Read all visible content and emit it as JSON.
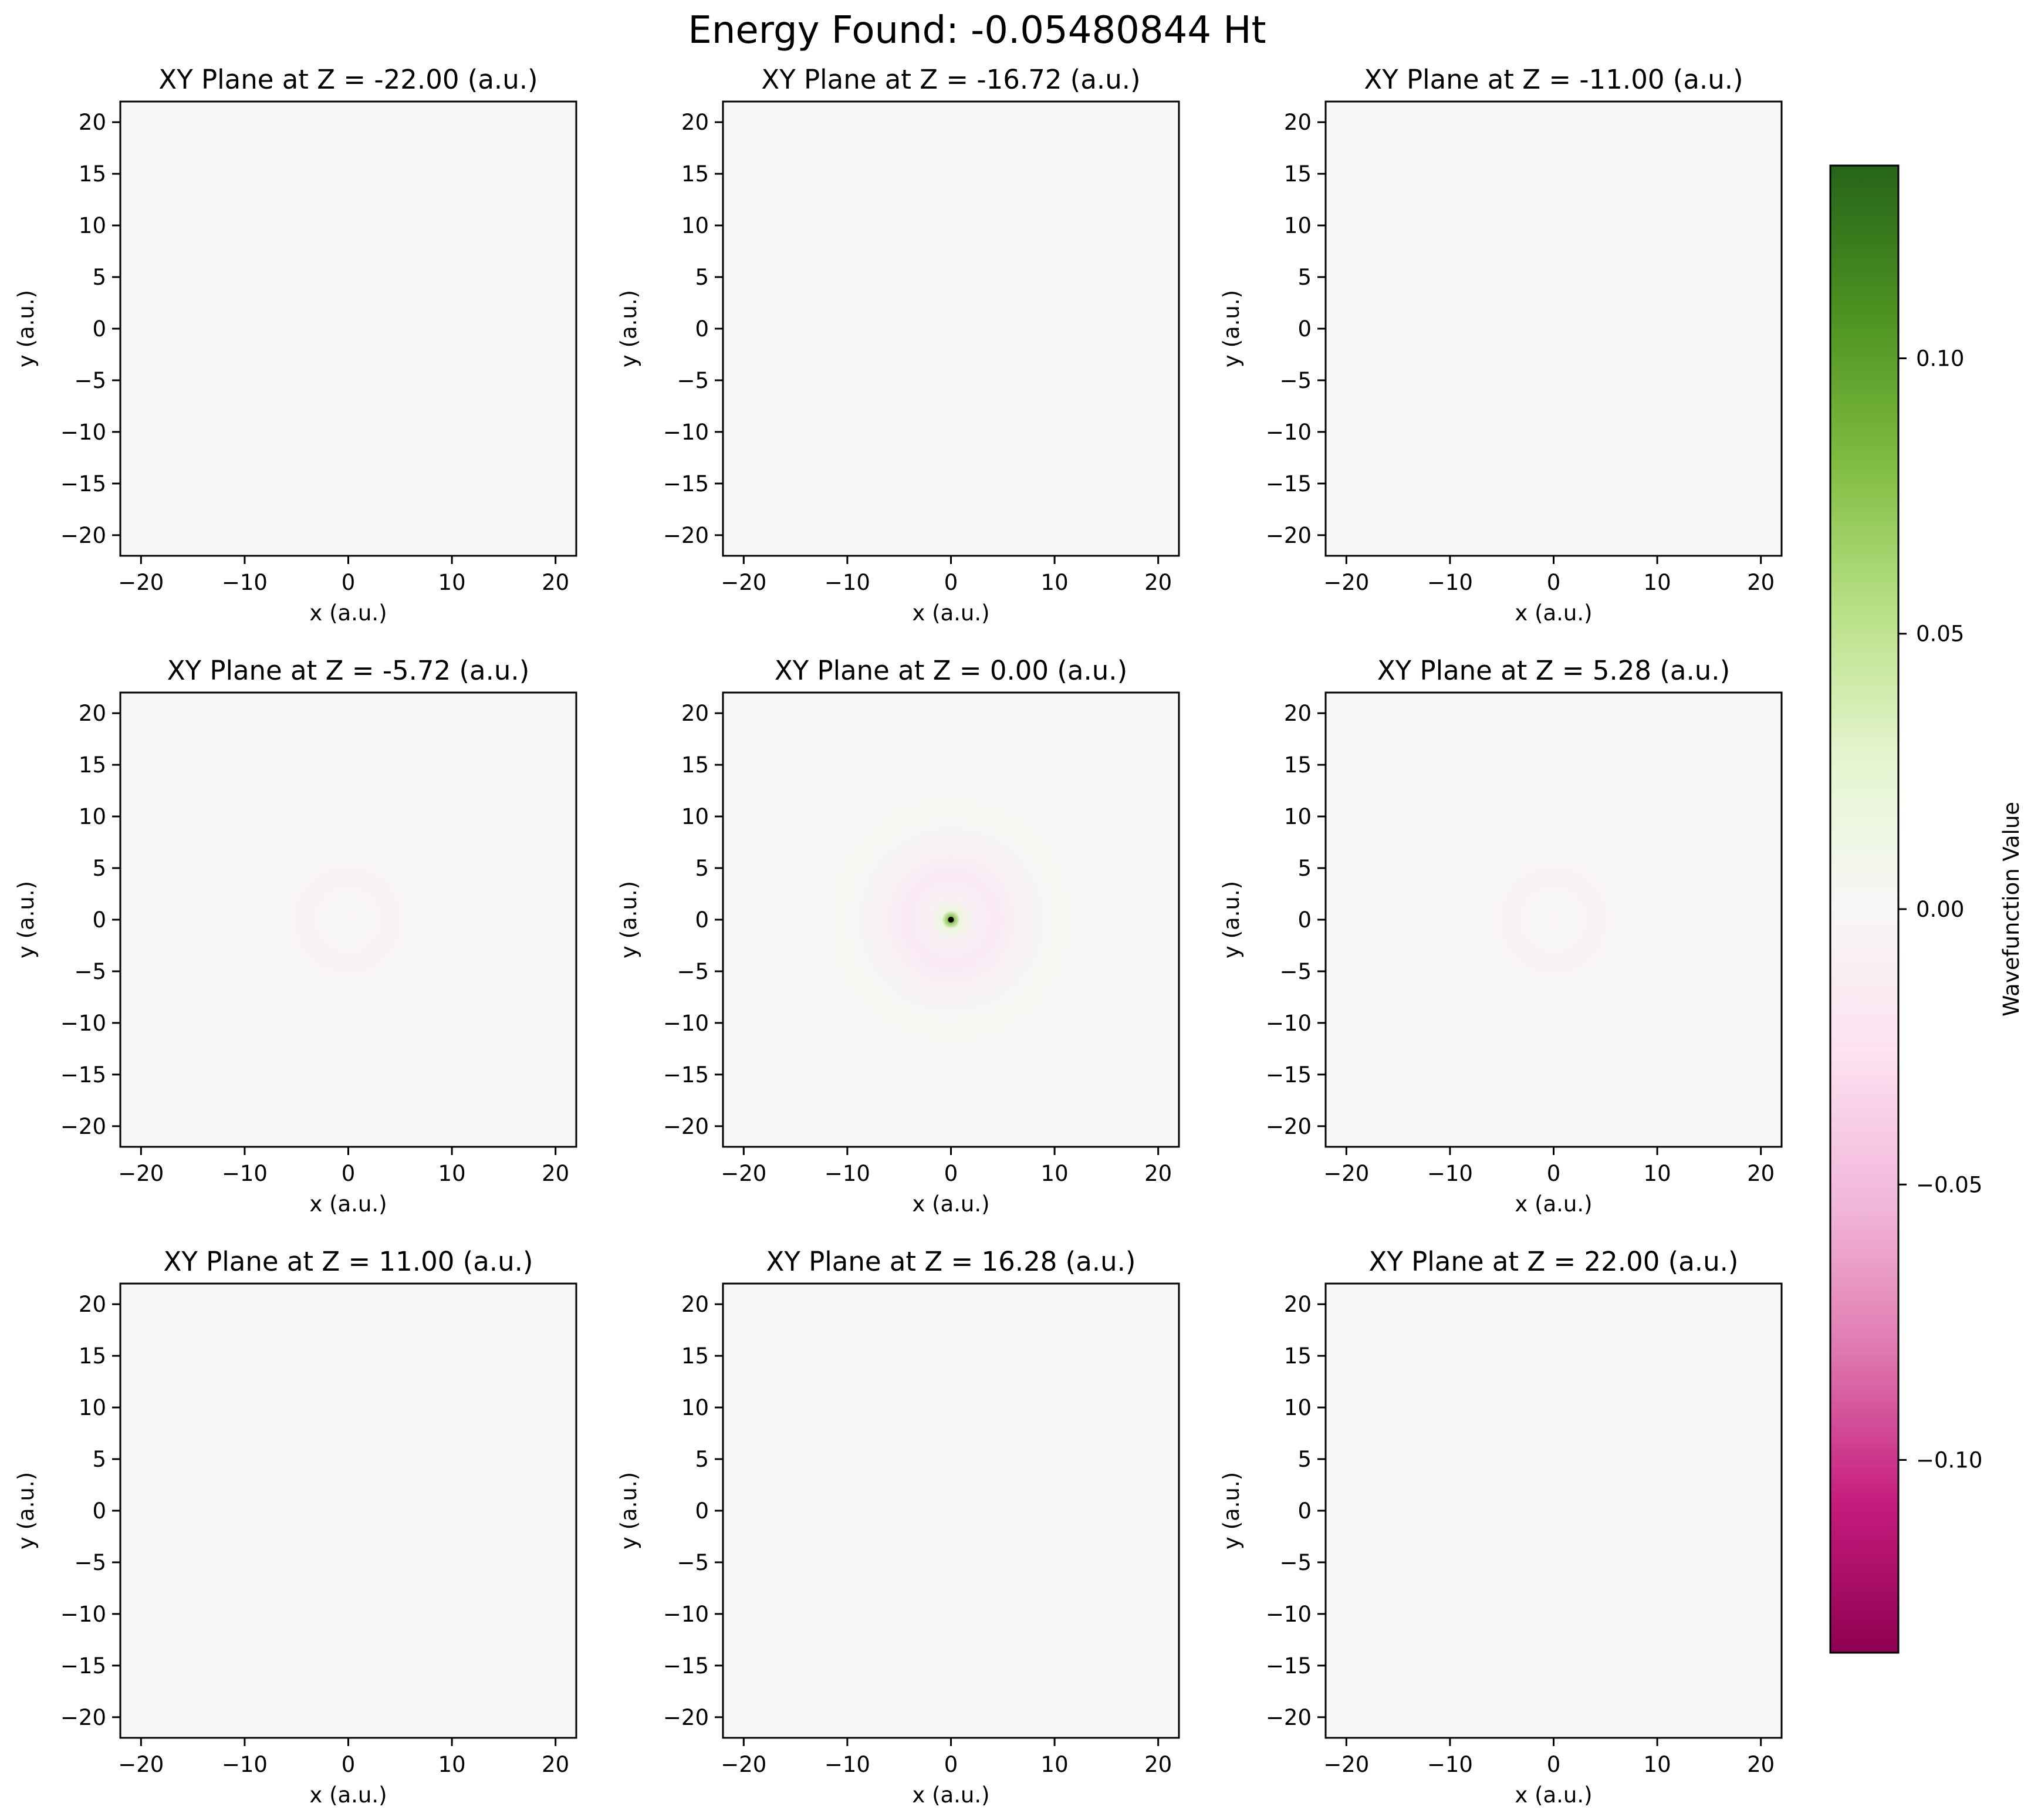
{
  "figure": {
    "suptitle": "Energy Found: -0.05480844 Ht"
  },
  "colors": {
    "background_near_zero": "#f5f5f5",
    "negative_end": "#8e0152",
    "positive_end": "#276419",
    "colormap": "PiYG"
  },
  "colorbar": {
    "label": "Wavefunction Value",
    "vmin": -0.135,
    "vmax": 0.135,
    "ticks": [
      -0.1,
      -0.05,
      0.0,
      0.05,
      0.1
    ],
    "tick_labels": [
      "−0.10",
      "−0.05",
      "0.00",
      "0.05",
      "0.10"
    ]
  },
  "chart_data": [
    {
      "type": "heatmap",
      "title": "XY Plane at Z = -22.00 (a.u.)",
      "xlabel": "x (a.u.)",
      "ylabel": "y (a.u.)",
      "xlim": [
        -22,
        22
      ],
      "ylim": [
        -22,
        22
      ],
      "xticks": [
        -20,
        -10,
        0,
        10,
        20
      ],
      "yticks": [
        -20,
        -15,
        -10,
        -5,
        0,
        5,
        10,
        15,
        20
      ],
      "z": -22.0,
      "center_value": 0.0,
      "negative_ring_value": 0.0,
      "positive_halo_value": 0.0
    },
    {
      "type": "heatmap",
      "title": "XY Plane at Z = -16.72 (a.u.)",
      "xlabel": "x (a.u.)",
      "ylabel": "y (a.u.)",
      "xlim": [
        -22,
        22
      ],
      "ylim": [
        -22,
        22
      ],
      "xticks": [
        -20,
        -10,
        0,
        10,
        20
      ],
      "yticks": [
        -20,
        -15,
        -10,
        -5,
        0,
        5,
        10,
        15,
        20
      ],
      "z": -16.72,
      "center_value": 0.0,
      "negative_ring_value": -0.001,
      "positive_halo_value": 0.001
    },
    {
      "type": "heatmap",
      "title": "XY Plane at Z = -11.00 (a.u.)",
      "xlabel": "x (a.u.)",
      "ylabel": "y (a.u.)",
      "xlim": [
        -22,
        22
      ],
      "ylim": [
        -22,
        22
      ],
      "xticks": [
        -20,
        -10,
        0,
        10,
        20
      ],
      "yticks": [
        -20,
        -15,
        -10,
        -5,
        0,
        5,
        10,
        15,
        20
      ],
      "z": -11.0,
      "center_value": 0.0,
      "negative_ring_value": 0.0,
      "positive_halo_value": 0.002
    },
    {
      "type": "heatmap",
      "title": "XY Plane at Z = -5.72 (a.u.)",
      "xlabel": "x (a.u.)",
      "ylabel": "y (a.u.)",
      "xlim": [
        -22,
        22
      ],
      "ylim": [
        -22,
        22
      ],
      "xticks": [
        -20,
        -10,
        0,
        10,
        20
      ],
      "yticks": [
        -20,
        -15,
        -10,
        -5,
        0,
        5,
        10,
        15,
        20
      ],
      "z": -5.72,
      "center_value": -0.005,
      "negative_ring_value": -0.004,
      "positive_halo_value": 0.002
    },
    {
      "type": "heatmap",
      "title": "XY Plane at Z = 0.00 (a.u.)",
      "xlabel": "x (a.u.)",
      "ylabel": "y (a.u.)",
      "xlim": [
        -22,
        22
      ],
      "ylim": [
        -22,
        22
      ],
      "xticks": [
        -20,
        -10,
        0,
        10,
        20
      ],
      "yticks": [
        -20,
        -15,
        -10,
        -5,
        0,
        5,
        10,
        15,
        20
      ],
      "z": 0.0,
      "center_value": 0.135,
      "negative_ring_value": -0.015,
      "positive_halo_value": 0.003
    },
    {
      "type": "heatmap",
      "title": "XY Plane at Z = 5.28 (a.u.)",
      "xlabel": "x (a.u.)",
      "ylabel": "y (a.u.)",
      "xlim": [
        -22,
        22
      ],
      "ylim": [
        -22,
        22
      ],
      "xticks": [
        -20,
        -10,
        0,
        10,
        20
      ],
      "yticks": [
        -20,
        -15,
        -10,
        -5,
        0,
        5,
        10,
        15,
        20
      ],
      "z": 5.28,
      "center_value": -0.005,
      "negative_ring_value": -0.004,
      "positive_halo_value": 0.002
    },
    {
      "type": "heatmap",
      "title": "XY Plane at Z = 11.00 (a.u.)",
      "xlabel": "x (a.u.)",
      "ylabel": "y (a.u.)",
      "xlim": [
        -22,
        22
      ],
      "ylim": [
        -22,
        22
      ],
      "xticks": [
        -20,
        -10,
        0,
        10,
        20
      ],
      "yticks": [
        -20,
        -15,
        -10,
        -5,
        0,
        5,
        10,
        15,
        20
      ],
      "z": 11.0,
      "center_value": 0.0,
      "negative_ring_value": 0.0,
      "positive_halo_value": 0.002
    },
    {
      "type": "heatmap",
      "title": "XY Plane at Z = 16.28 (a.u.)",
      "xlabel": "x (a.u.)",
      "ylabel": "y (a.u.)",
      "xlim": [
        -22,
        22
      ],
      "ylim": [
        -22,
        22
      ],
      "xticks": [
        -20,
        -10,
        0,
        10,
        20
      ],
      "yticks": [
        -20,
        -15,
        -10,
        -5,
        0,
        5,
        10,
        15,
        20
      ],
      "z": 16.28,
      "center_value": 0.0,
      "negative_ring_value": -0.001,
      "positive_halo_value": 0.001
    },
    {
      "type": "heatmap",
      "title": "XY Plane at Z = 22.00 (a.u.)",
      "xlabel": "x (a.u.)",
      "ylabel": "y (a.u.)",
      "xlim": [
        -22,
        22
      ],
      "ylim": [
        -22,
        22
      ],
      "xticks": [
        -20,
        -10,
        0,
        10,
        20
      ],
      "yticks": [
        -20,
        -15,
        -10,
        -5,
        0,
        5,
        10,
        15,
        20
      ],
      "z": 22.0,
      "center_value": 0.0,
      "negative_ring_value": 0.0,
      "positive_halo_value": 0.0
    }
  ]
}
